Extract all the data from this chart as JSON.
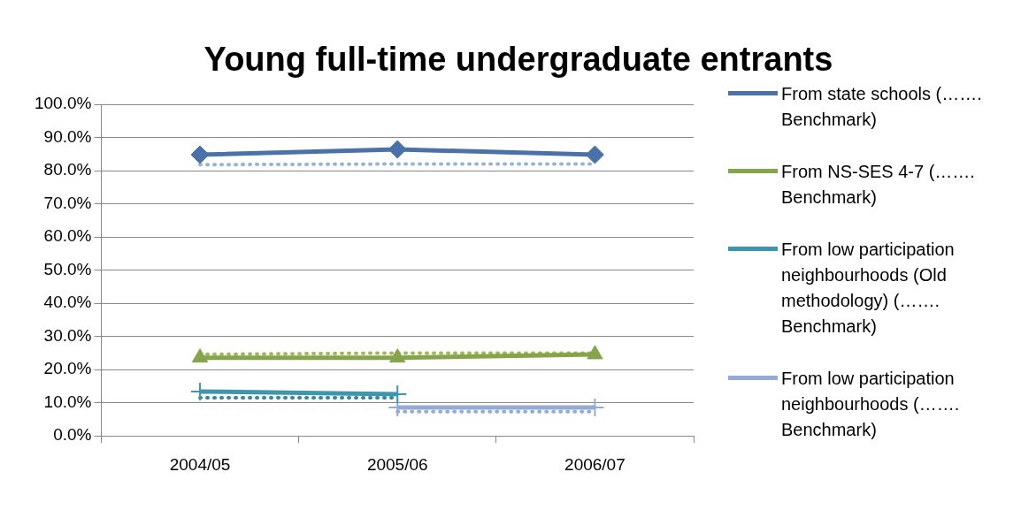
{
  "chart_data": {
    "type": "line",
    "title": "Young full-time undergraduate entrants",
    "categories": [
      "2004/05",
      "2005/06",
      "2006/07"
    ],
    "series": [
      {
        "name": "From state schools (……. Benchmark)",
        "color": "#4a72a8",
        "values": [
          84.8,
          86.4,
          84.8
        ],
        "marker": "diamond",
        "line_style": "solid"
      },
      {
        "color": "#95b3d7",
        "values": [
          81.8,
          82.0,
          82.0
        ],
        "marker": "none",
        "line_style": "dotted"
      },
      {
        "name": "From NS-SES 4-7 (……. Benchmark)",
        "color": "#86a44a",
        "values": [
          23.6,
          23.6,
          24.6
        ],
        "marker": "triangle",
        "line_style": "solid"
      },
      {
        "color": "#9bbb59",
        "values": [
          24.6,
          25.0,
          25.0
        ],
        "marker": "none",
        "line_style": "dotted"
      },
      {
        "name": "From low participation neighbourhoods (Old methodology) (……. Benchmark)",
        "color": "#3d96ae",
        "values": [
          13.4,
          12.6,
          null
        ],
        "marker": "cross",
        "line_style": "solid"
      },
      {
        "color": "#31859c",
        "values": [
          11.5,
          11.5,
          null
        ],
        "marker": "none",
        "line_style": "dotted"
      },
      {
        "name": "From low participation neighbourhoods (……. Benchmark)",
        "color": "#95abd6",
        "values": [
          null,
          8.6,
          8.6
        ],
        "marker": "cross",
        "line_style": "solid"
      },
      {
        "color": "#95abd6",
        "values": [
          null,
          7.3,
          7.3
        ],
        "marker": "none",
        "line_style": "dotted"
      }
    ],
    "ylim": [
      0,
      100
    ],
    "yticks": [
      {
        "value": 0,
        "label": "0.0%"
      },
      {
        "value": 10,
        "label": "10.0%"
      },
      {
        "value": 20,
        "label": "20.0%"
      },
      {
        "value": 30,
        "label": "30.0%"
      },
      {
        "value": 40,
        "label": "40.0%"
      },
      {
        "value": 50,
        "label": "50.0%"
      },
      {
        "value": 60,
        "label": "60.0%"
      },
      {
        "value": 70,
        "label": "70.0%"
      },
      {
        "value": 80,
        "label": "80.0%"
      },
      {
        "value": 90,
        "label": "90.0%"
      },
      {
        "value": 100,
        "label": "100.0%"
      }
    ],
    "grid": "y",
    "legend": "right"
  }
}
